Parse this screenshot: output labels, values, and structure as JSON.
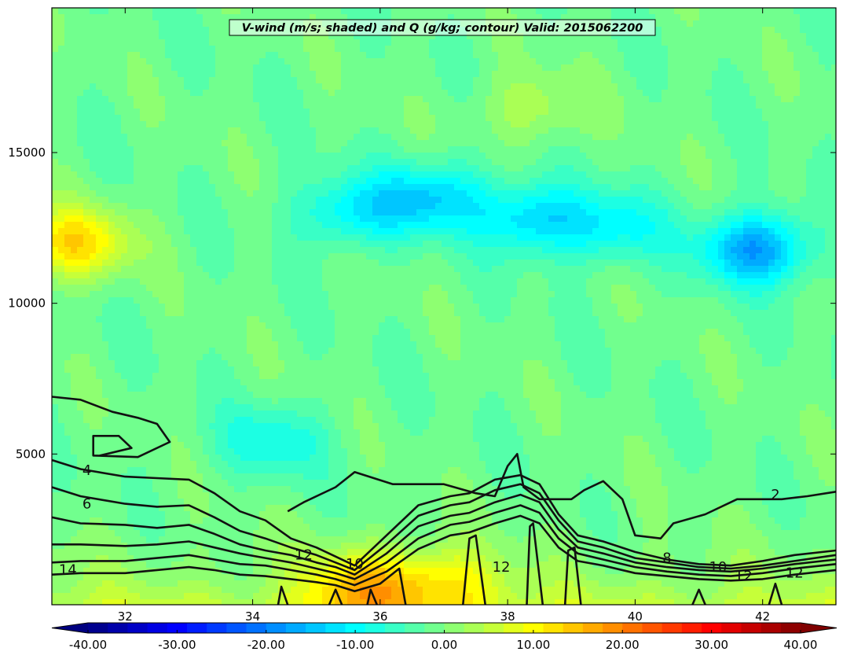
{
  "chart_data": {
    "type": "heatmap",
    "title": "V-wind (m/s; shaded) and Q (g/kg; contour) Valid: 2015062200",
    "xlabel": "",
    "ylabel": "",
    "xlim": [
      30.85,
      43.15
    ],
    "ylim": [
      0,
      19800
    ],
    "x_ticks": [
      32,
      34,
      36,
      38,
      40,
      42
    ],
    "x_tick_labels": [
      "32",
      "34",
      "36",
      "38",
      "40",
      "42"
    ],
    "y_ticks": [
      5000,
      10000,
      15000
    ],
    "y_tick_labels": [
      "5000",
      "10000",
      "15000"
    ],
    "colormap": "jet",
    "colorbar": {
      "orientation": "horizontal",
      "range": [
        -40,
        40
      ],
      "levels": 36,
      "extend": "both",
      "ticks": [
        -40,
        -30,
        -20,
        -10,
        0,
        10,
        20,
        30,
        40
      ],
      "tick_labels": [
        "-40.00",
        "-30.00",
        "-20.00",
        "-10.00",
        "0.00",
        "10.00",
        "20.00",
        "30.00",
        "40.00"
      ]
    },
    "shaded_features": [
      {
        "x": 31.2,
        "y": 12000,
        "value": 16
      },
      {
        "x": 35.5,
        "y": 13000,
        "value": -10
      },
      {
        "x": 36.8,
        "y": 13500,
        "value": -13
      },
      {
        "x": 38.4,
        "y": 12800,
        "value": -13
      },
      {
        "x": 39.7,
        "y": 12500,
        "value": -9
      },
      {
        "x": 41.9,
        "y": 11800,
        "value": -18
      },
      {
        "x": 34.3,
        "y": 5400,
        "value": -8
      },
      {
        "x": 35.7,
        "y": 600,
        "value": 14
      },
      {
        "x": 37.0,
        "y": 700,
        "value": 11
      },
      {
        "x": 38.4,
        "y": 16500,
        "value": 6
      }
    ],
    "contour_levels": [
      2,
      4,
      6,
      8,
      10,
      12,
      14
    ],
    "contour_labels": [
      {
        "text": "4",
        "x": 31.4,
        "y": 4300
      },
      {
        "text": "6",
        "x": 31.4,
        "y": 3200
      },
      {
        "text": "12",
        "x": 34.8,
        "y": 1500
      },
      {
        "text": "10",
        "x": 35.6,
        "y": 1200
      },
      {
        "text": "14",
        "x": 31.1,
        "y": 1000
      },
      {
        "text": "12",
        "x": 37.9,
        "y": 1100
      },
      {
        "text": "8",
        "x": 40.5,
        "y": 1400
      },
      {
        "text": "10",
        "x": 41.3,
        "y": 1100
      },
      {
        "text": "12",
        "x": 41.7,
        "y": 800
      },
      {
        "text": "12",
        "x": 42.5,
        "y": 900
      },
      {
        "text": "2",
        "x": 42.2,
        "y": 3500
      }
    ],
    "contours": [
      {
        "level": 2,
        "points": [
          [
            30.85,
            6900
          ],
          [
            31.3,
            6800
          ],
          [
            31.8,
            6400
          ],
          [
            32.2,
            6200
          ],
          [
            32.5,
            6000
          ],
          [
            32.7,
            5400
          ],
          [
            32.2,
            4900
          ],
          [
            31.5,
            4950
          ],
          [
            31.5,
            5600
          ],
          [
            31.9,
            5600
          ],
          [
            32.1,
            5200
          ],
          [
            31.6,
            4950
          ]
        ]
      },
      {
        "level": 2,
        "points": [
          [
            34.55,
            3100
          ],
          [
            34.8,
            3400
          ],
          [
            35.3,
            3900
          ],
          [
            35.6,
            4400
          ],
          [
            36.2,
            4000
          ],
          [
            37.0,
            4000
          ],
          [
            37.5,
            3700
          ],
          [
            37.8,
            3600
          ],
          [
            38.0,
            4600
          ],
          [
            38.15,
            5000
          ],
          [
            38.25,
            3900
          ],
          [
            38.5,
            3500
          ],
          [
            39.0,
            3500
          ],
          [
            39.2,
            3800
          ],
          [
            39.5,
            4100
          ],
          [
            39.8,
            3500
          ],
          [
            40.0,
            2300
          ],
          [
            40.4,
            2200
          ],
          [
            40.6,
            2700
          ],
          [
            41.1,
            3000
          ],
          [
            41.6,
            3500
          ],
          [
            42.3,
            3500
          ],
          [
            42.7,
            3600
          ],
          [
            43.15,
            3750
          ]
        ]
      },
      {
        "level": 4,
        "points": [
          [
            30.85,
            4800
          ],
          [
            31.3,
            4500
          ],
          [
            32.0,
            4250
          ],
          [
            32.5,
            4200
          ],
          [
            33.0,
            4150
          ],
          [
            33.4,
            3700
          ],
          [
            33.8,
            3100
          ],
          [
            34.2,
            2800
          ],
          [
            34.6,
            2200
          ],
          [
            35.0,
            1900
          ],
          [
            35.3,
            1600
          ],
          [
            35.6,
            1300
          ],
          [
            36.1,
            2300
          ],
          [
            36.6,
            3300
          ],
          [
            37.1,
            3600
          ],
          [
            37.4,
            3700
          ],
          [
            37.8,
            4150
          ],
          [
            38.2,
            4300
          ],
          [
            38.5,
            4000
          ],
          [
            38.8,
            3000
          ],
          [
            39.1,
            2300
          ],
          [
            39.5,
            2100
          ],
          [
            40.0,
            1750
          ],
          [
            40.5,
            1500
          ],
          [
            41.0,
            1350
          ],
          [
            41.5,
            1300
          ],
          [
            42.0,
            1450
          ],
          [
            42.5,
            1650
          ],
          [
            43.15,
            1800
          ]
        ]
      },
      {
        "level": 6,
        "points": [
          [
            30.85,
            3900
          ],
          [
            31.3,
            3600
          ],
          [
            32.0,
            3350
          ],
          [
            32.5,
            3250
          ],
          [
            33.0,
            3300
          ],
          [
            33.4,
            2900
          ],
          [
            33.8,
            2450
          ],
          [
            34.2,
            2200
          ],
          [
            34.6,
            1900
          ],
          [
            35.0,
            1650
          ],
          [
            35.3,
            1400
          ],
          [
            35.6,
            1150
          ],
          [
            36.1,
            2000
          ],
          [
            36.6,
            2950
          ],
          [
            37.1,
            3300
          ],
          [
            37.4,
            3400
          ],
          [
            37.8,
            3800
          ],
          [
            38.2,
            4000
          ],
          [
            38.5,
            3700
          ],
          [
            38.8,
            2800
          ],
          [
            39.1,
            2100
          ],
          [
            39.5,
            1900
          ],
          [
            40.0,
            1550
          ],
          [
            40.5,
            1400
          ],
          [
            41.0,
            1250
          ],
          [
            41.5,
            1200
          ],
          [
            42.0,
            1300
          ],
          [
            42.5,
            1450
          ],
          [
            43.15,
            1650
          ]
        ]
      },
      {
        "level": 8,
        "points": [
          [
            30.85,
            2900
          ],
          [
            31.3,
            2700
          ],
          [
            32.0,
            2650
          ],
          [
            32.5,
            2550
          ],
          [
            33.0,
            2650
          ],
          [
            33.4,
            2350
          ],
          [
            33.8,
            2000
          ],
          [
            34.2,
            1800
          ],
          [
            34.6,
            1650
          ],
          [
            35.0,
            1400
          ],
          [
            35.3,
            1250
          ],
          [
            35.6,
            1000
          ],
          [
            36.1,
            1700
          ],
          [
            36.6,
            2600
          ],
          [
            37.1,
            2950
          ],
          [
            37.4,
            3050
          ],
          [
            37.8,
            3400
          ],
          [
            38.2,
            3650
          ],
          [
            38.5,
            3400
          ],
          [
            38.8,
            2500
          ],
          [
            39.1,
            1900
          ],
          [
            39.5,
            1700
          ],
          [
            40.0,
            1400
          ],
          [
            40.5,
            1250
          ],
          [
            41.0,
            1150
          ],
          [
            41.5,
            1100
          ],
          [
            42.0,
            1200
          ],
          [
            42.5,
            1350
          ],
          [
            43.15,
            1500
          ]
        ]
      },
      {
        "level": 10,
        "points": [
          [
            30.85,
            2000
          ],
          [
            31.3,
            2000
          ],
          [
            32.0,
            1950
          ],
          [
            32.5,
            2000
          ],
          [
            33.0,
            2100
          ],
          [
            33.4,
            1900
          ],
          [
            33.8,
            1700
          ],
          [
            34.2,
            1550
          ],
          [
            34.6,
            1400
          ],
          [
            35.0,
            1200
          ],
          [
            35.3,
            1050
          ],
          [
            35.6,
            850
          ],
          [
            36.1,
            1400
          ],
          [
            36.6,
            2200
          ],
          [
            37.1,
            2650
          ],
          [
            37.4,
            2750
          ],
          [
            37.8,
            3050
          ],
          [
            38.2,
            3300
          ],
          [
            38.5,
            3050
          ],
          [
            38.8,
            2200
          ],
          [
            39.1,
            1700
          ],
          [
            39.5,
            1500
          ],
          [
            40.0,
            1250
          ],
          [
            40.5,
            1100
          ],
          [
            41.0,
            1000
          ],
          [
            41.5,
            950
          ],
          [
            42.0,
            1050
          ],
          [
            42.5,
            1200
          ],
          [
            43.15,
            1350
          ]
        ]
      },
      {
        "level": 12,
        "points": [
          [
            30.85,
            1400
          ],
          [
            31.3,
            1450
          ],
          [
            32.0,
            1450
          ],
          [
            32.5,
            1550
          ],
          [
            33.0,
            1650
          ],
          [
            33.4,
            1500
          ],
          [
            33.8,
            1350
          ],
          [
            34.2,
            1300
          ],
          [
            34.6,
            1150
          ],
          [
            35.0,
            1000
          ],
          [
            35.3,
            850
          ],
          [
            35.6,
            650
          ],
          [
            36.1,
            1100
          ],
          [
            36.6,
            1850
          ],
          [
            37.1,
            2300
          ],
          [
            37.4,
            2400
          ],
          [
            37.8,
            2700
          ],
          [
            38.2,
            2950
          ],
          [
            38.5,
            2700
          ],
          [
            38.8,
            1900
          ],
          [
            39.1,
            1450
          ],
          [
            39.5,
            1300
          ],
          [
            40.0,
            1050
          ],
          [
            40.5,
            950
          ],
          [
            41.0,
            850
          ],
          [
            41.5,
            800
          ],
          [
            42.0,
            850
          ],
          [
            42.5,
            1000
          ],
          [
            43.15,
            1150
          ]
        ]
      },
      {
        "level": 12,
        "points": [
          [
            37.3,
            0
          ],
          [
            37.4,
            2200
          ],
          [
            37.5,
            2300
          ],
          [
            37.65,
            0
          ]
        ]
      },
      {
        "level": 12,
        "points": [
          [
            38.3,
            0
          ],
          [
            38.35,
            2600
          ],
          [
            38.4,
            2700
          ],
          [
            38.55,
            0
          ]
        ]
      },
      {
        "level": 14,
        "points": [
          [
            30.85,
            1000
          ],
          [
            31.3,
            1050
          ],
          [
            32.0,
            1050
          ],
          [
            32.5,
            1150
          ],
          [
            33.0,
            1250
          ],
          [
            33.4,
            1150
          ],
          [
            33.8,
            1000
          ],
          [
            34.2,
            950
          ],
          [
            34.6,
            850
          ],
          [
            35.0,
            750
          ],
          [
            35.3,
            650
          ],
          [
            35.6,
            450
          ],
          [
            36.0,
            700
          ],
          [
            36.3,
            1200
          ],
          [
            36.4,
            0
          ]
        ]
      },
      {
        "level": 14,
        "points": [
          [
            38.9,
            0
          ],
          [
            38.95,
            1800
          ],
          [
            39.05,
            1900
          ],
          [
            39.15,
            0
          ]
        ]
      },
      {
        "level": 14,
        "points": [
          [
            40.9,
            0
          ],
          [
            41.0,
            500
          ],
          [
            41.1,
            0
          ]
        ]
      },
      {
        "level": 14,
        "points": [
          [
            42.1,
            0
          ],
          [
            42.2,
            700
          ],
          [
            42.3,
            0
          ]
        ]
      },
      {
        "level": 14,
        "points": [
          [
            35.8,
            0
          ],
          [
            35.85,
            500
          ],
          [
            35.95,
            0
          ]
        ]
      },
      {
        "level": 14,
        "points": [
          [
            35.2,
            0
          ],
          [
            35.3,
            500
          ],
          [
            35.4,
            0
          ]
        ]
      },
      {
        "level": 14,
        "points": [
          [
            34.4,
            0
          ],
          [
            34.45,
            600
          ],
          [
            34.55,
            0
          ]
        ]
      }
    ]
  }
}
